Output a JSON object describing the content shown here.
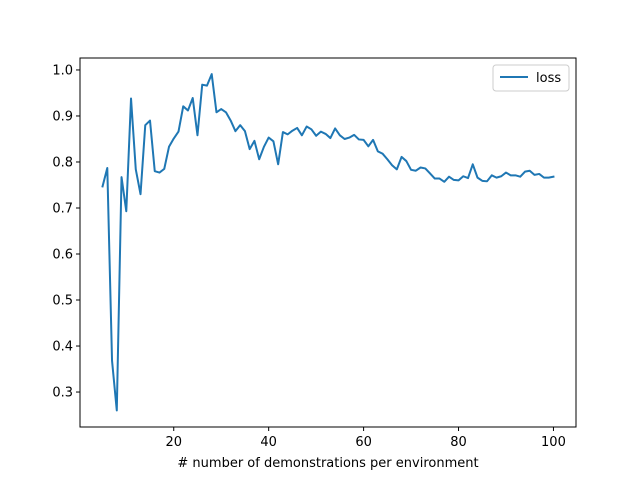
{
  "chart_data": {
    "type": "line",
    "xlabel": "# number of demonstrations per environment",
    "ylabel": "",
    "xlim": [
      0.25,
      104.75
    ],
    "ylim": [
      0.224,
      1.026
    ],
    "x_ticks": [
      20,
      40,
      60,
      80,
      100
    ],
    "x_tick_labels": [
      "20",
      "40",
      "60",
      "80",
      "100"
    ],
    "y_ticks": [
      0.3,
      0.4,
      0.5,
      0.6,
      0.7,
      0.8,
      0.9,
      1.0
    ],
    "y_tick_labels": [
      "0.3",
      "0.4",
      "0.5",
      "0.6",
      "0.7",
      "0.8",
      "0.9",
      "1.0"
    ],
    "grid": false,
    "legend_position": "top-right",
    "series": [
      {
        "name": "loss",
        "color": "#1f77b4",
        "x": [
          5,
          6,
          7,
          8,
          9,
          10,
          11,
          12,
          13,
          14,
          15,
          16,
          17,
          18,
          19,
          20,
          21,
          22,
          23,
          24,
          25,
          26,
          27,
          28,
          29,
          30,
          31,
          32,
          33,
          34,
          35,
          36,
          37,
          38,
          39,
          40,
          41,
          42,
          43,
          44,
          45,
          46,
          47,
          48,
          49,
          50,
          51,
          52,
          53,
          54,
          55,
          56,
          57,
          58,
          59,
          60,
          61,
          62,
          63,
          64,
          65,
          66,
          67,
          68,
          69,
          70,
          71,
          72,
          73,
          74,
          75,
          76,
          77,
          78,
          79,
          80,
          81,
          82,
          83,
          84,
          85,
          86,
          87,
          88,
          89,
          90,
          91,
          92,
          93,
          94,
          95,
          96,
          97,
          98,
          99,
          100
        ],
        "values": [
          0.747,
          0.787,
          0.368,
          0.26,
          0.767,
          0.693,
          0.938,
          0.784,
          0.73,
          0.88,
          0.89,
          0.78,
          0.777,
          0.785,
          0.833,
          0.851,
          0.866,
          0.921,
          0.912,
          0.939,
          0.858,
          0.968,
          0.966,
          0.991,
          0.908,
          0.915,
          0.908,
          0.89,
          0.867,
          0.88,
          0.867,
          0.828,
          0.846,
          0.806,
          0.833,
          0.853,
          0.845,
          0.795,
          0.865,
          0.86,
          0.868,
          0.874,
          0.858,
          0.877,
          0.871,
          0.857,
          0.866,
          0.861,
          0.852,
          0.873,
          0.858,
          0.85,
          0.853,
          0.859,
          0.849,
          0.848,
          0.834,
          0.848,
          0.823,
          0.818,
          0.806,
          0.793,
          0.784,
          0.811,
          0.802,
          0.783,
          0.781,
          0.788,
          0.786,
          0.775,
          0.764,
          0.764,
          0.757,
          0.768,
          0.761,
          0.76,
          0.769,
          0.765,
          0.795,
          0.766,
          0.759,
          0.758,
          0.771,
          0.766,
          0.769,
          0.777,
          0.771,
          0.771,
          0.768,
          0.779,
          0.781,
          0.772,
          0.774,
          0.766,
          0.766,
          0.768
        ]
      }
    ]
  }
}
